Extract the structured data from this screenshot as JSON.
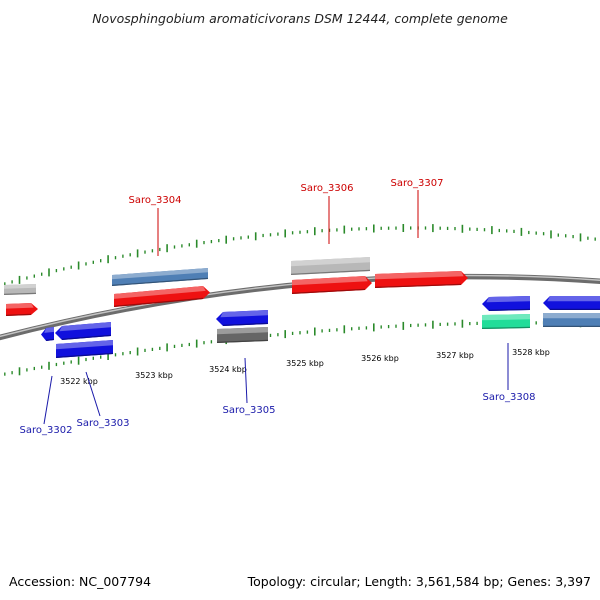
{
  "title": "Novosphingobium aromaticivorans DSM 12444, complete genome",
  "footer": {
    "accession": "Accession: NC_007794",
    "topology": "Topology: circular; Length: 3,561,584 bp; Genes: 3,397"
  },
  "colors": {
    "backbone": "#7a7a7a",
    "tick": "#2a8a2a",
    "forward_label": "#cc0000",
    "reverse_label": "#1a1aaa",
    "gene_red": "#ee1111",
    "gene_blue": "#1111dd",
    "gene_grey": "#b8b8b8",
    "gene_steel": "#4f7fb5",
    "gene_dark": "#666666",
    "gene_teal": "#22dd99"
  },
  "scale": {
    "tick_labels": [
      "3522 kbp",
      "3523 kbp",
      "3524 kbp",
      "3525 kbp",
      "3526 kbp",
      "3527 kbp",
      "3528 kbp"
    ]
  },
  "genes": {
    "labels": [
      "Saro_3302",
      "Saro_3303",
      "Saro_3304",
      "Saro_3305",
      "Saro_3306",
      "Saro_3307",
      "Saro_3308"
    ]
  }
}
